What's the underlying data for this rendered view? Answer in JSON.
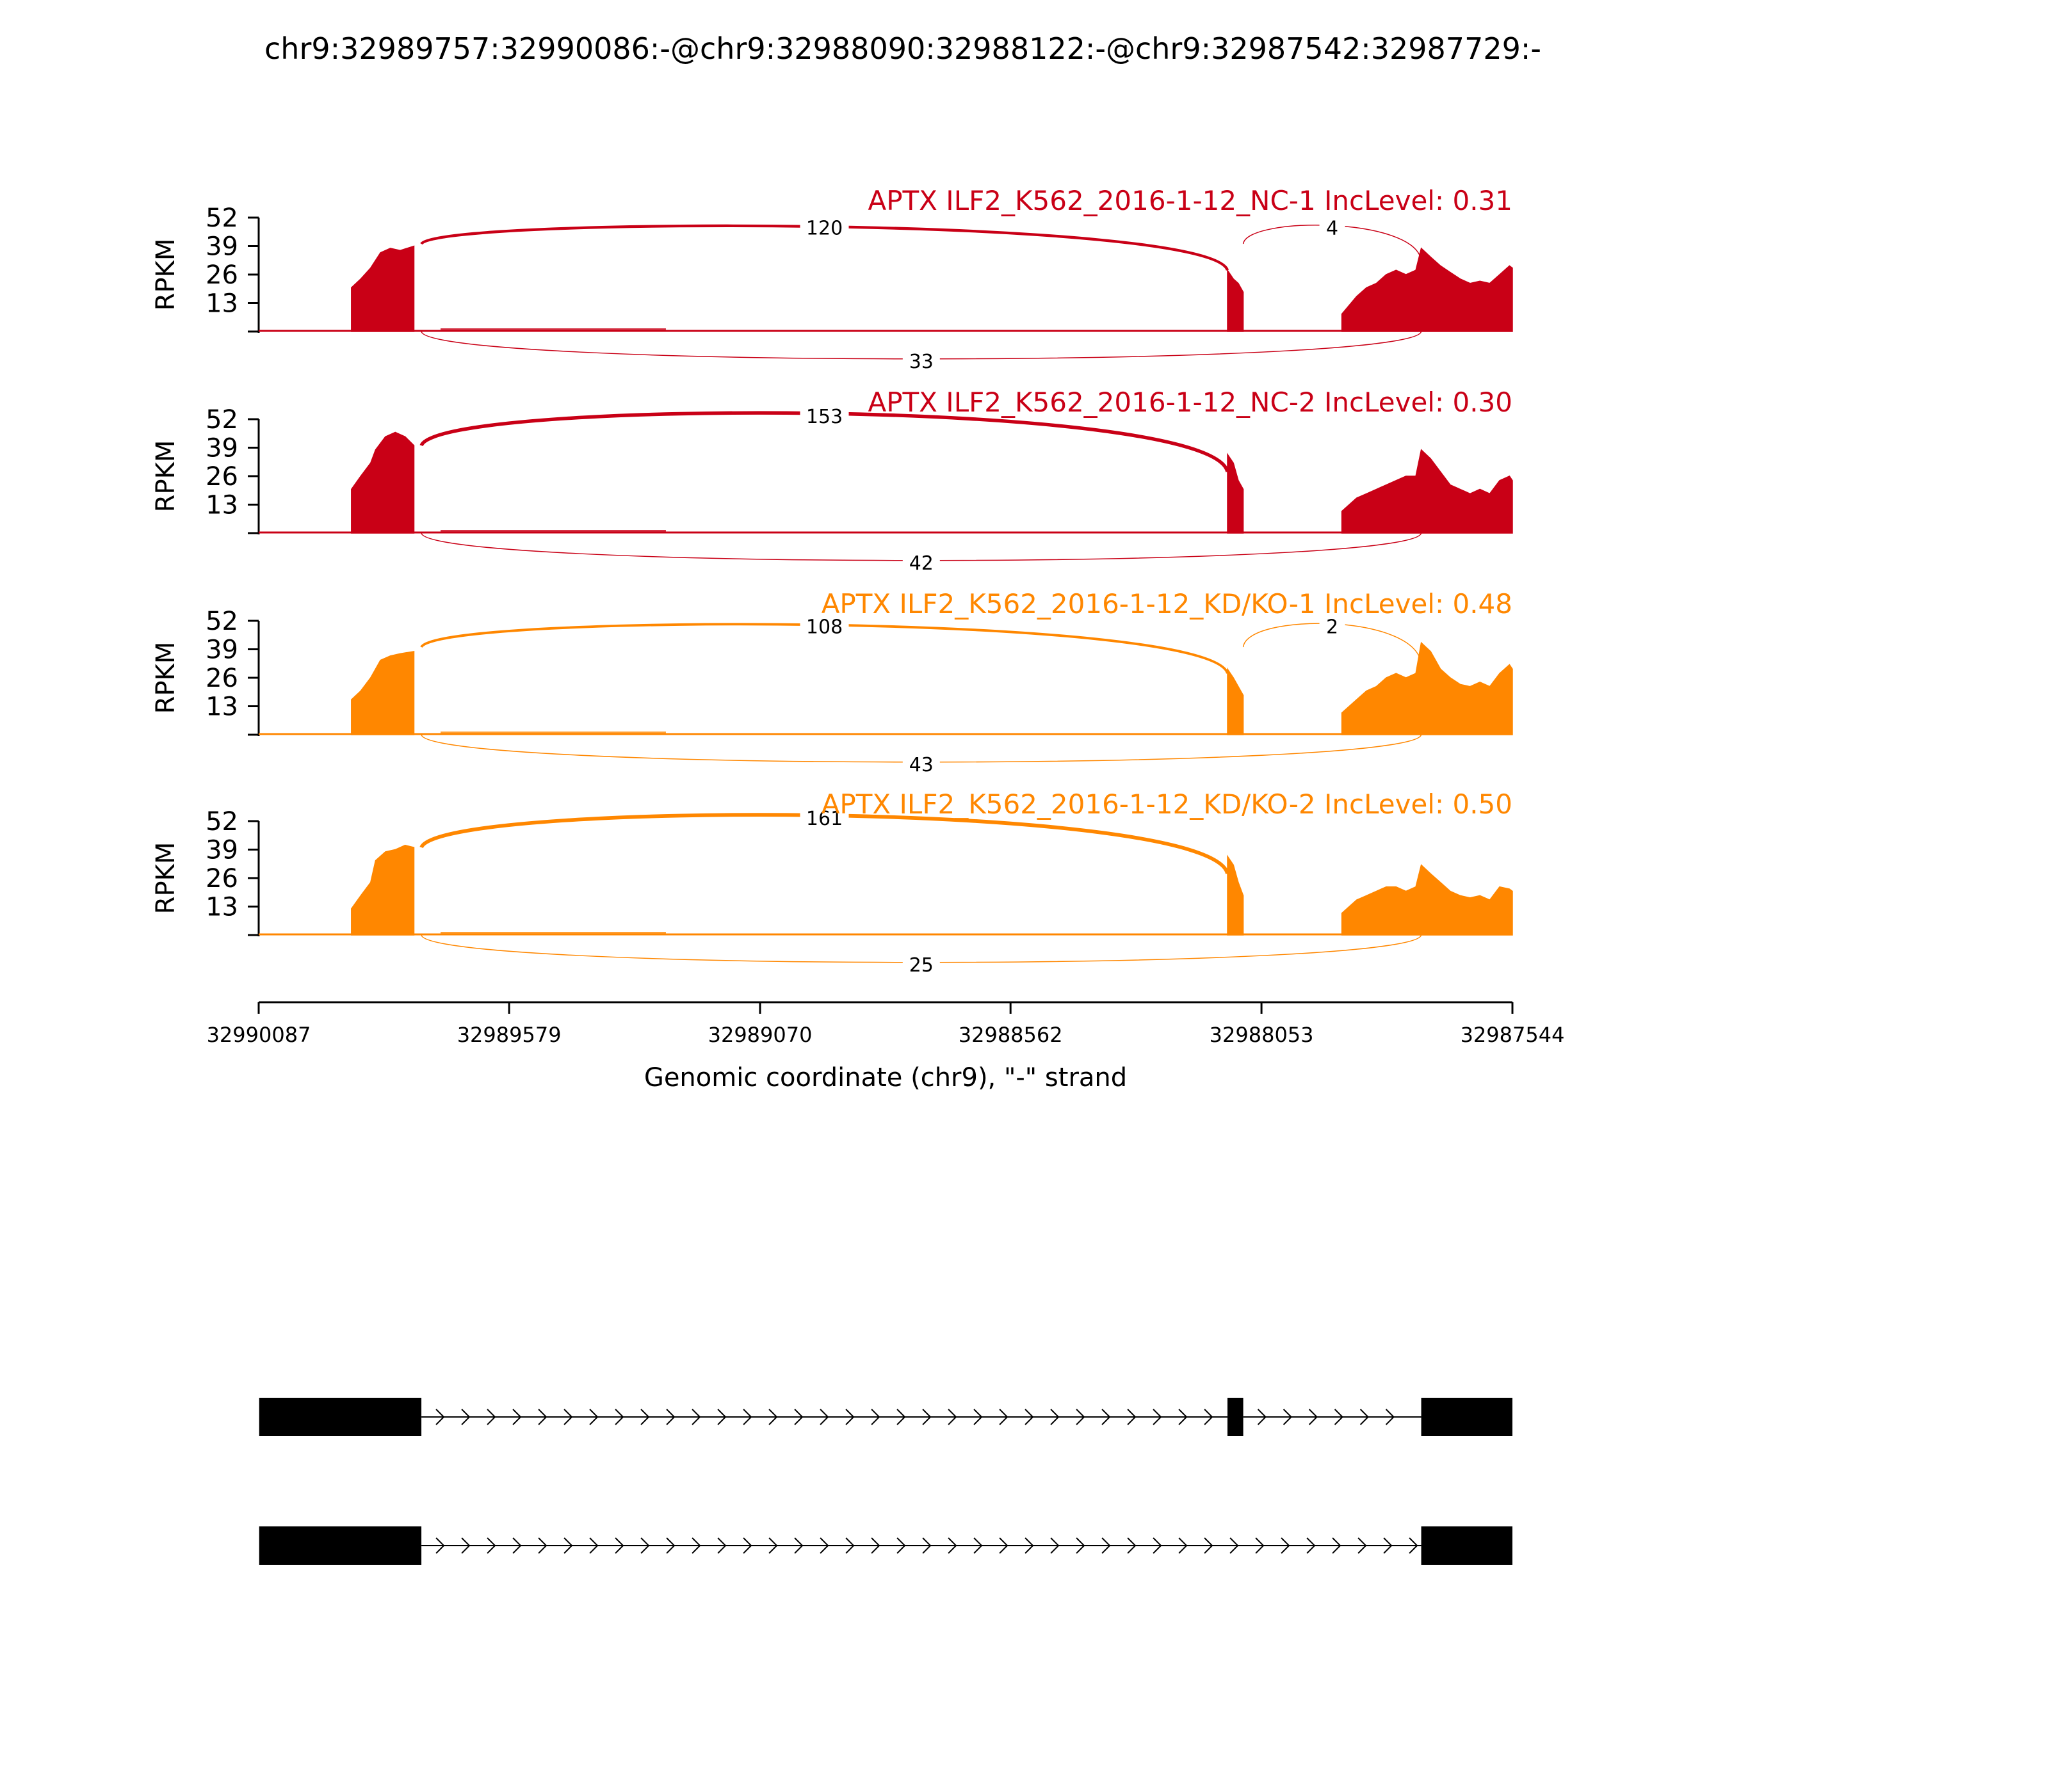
{
  "title": "chr9:32989757:32990086:-@chr9:32988090:32988122:-@chr9:32987542:32987729:-",
  "chart_data": {
    "type": "area",
    "ylabel": "RPKM",
    "xlabel": "Genomic coordinate (chr9), \"-\" strand",
    "ylim": [
      0,
      52
    ],
    "yticks": [
      "52",
      "39",
      "26",
      "13"
    ],
    "xlim": [
      32990087,
      32987544
    ],
    "xticks": [
      "32990087",
      "32989579",
      "32989070",
      "32988562",
      "32988053",
      "32987544"
    ],
    "series": [
      {
        "name": "APTX ILF2_K562_2016-1-12_NC-1 IncLevel: 0.31",
        "color": "#c90016",
        "exon1": [
          [
            32989899,
            20
          ],
          [
            32989880,
            24
          ],
          [
            32989860,
            29
          ],
          [
            32989840,
            36
          ],
          [
            32989820,
            38
          ],
          [
            32989800,
            37
          ],
          [
            32989772,
            39
          ]
        ],
        "exon2": [
          [
            32988122,
            28
          ],
          [
            32988110,
            24
          ],
          [
            32988100,
            22
          ],
          [
            32988090,
            18
          ]
        ],
        "exon3": [
          [
            32987890,
            8
          ],
          [
            32987860,
            16
          ],
          [
            32987840,
            20
          ],
          [
            32987820,
            22
          ],
          [
            32987800,
            26
          ],
          [
            32987780,
            28
          ],
          [
            32987760,
            26
          ],
          [
            32987740,
            28
          ],
          [
            32987729,
            38
          ],
          [
            32987710,
            34
          ],
          [
            32987690,
            30
          ],
          [
            32987670,
            27
          ],
          [
            32987650,
            24
          ],
          [
            32987630,
            22
          ],
          [
            32987610,
            23
          ],
          [
            32987590,
            22
          ],
          [
            32987570,
            26
          ],
          [
            32987550,
            30
          ],
          [
            32987544,
            29
          ]
        ],
        "junctions": [
          {
            "count": "120",
            "from": 32989757,
            "to": 32988122,
            "side": "above",
            "height": 46
          },
          {
            "count": "4",
            "from": 32988090,
            "to": 32987729,
            "side": "above",
            "height": 46
          },
          {
            "count": "33",
            "from": 32989757,
            "to": 32987729,
            "side": "below",
            "height": 12
          }
        ]
      },
      {
        "name": "APTX ILF2_K562_2016-1-12_NC-2 IncLevel: 0.30",
        "color": "#c90016",
        "exon1": [
          [
            32989899,
            20
          ],
          [
            32989880,
            26
          ],
          [
            32989860,
            32
          ],
          [
            32989850,
            38
          ],
          [
            32989830,
            44
          ],
          [
            32989810,
            46
          ],
          [
            32989790,
            44
          ],
          [
            32989772,
            40
          ]
        ],
        "exon2": [
          [
            32988122,
            36
          ],
          [
            32988110,
            32
          ],
          [
            32988100,
            24
          ],
          [
            32988090,
            20
          ]
        ],
        "exon3": [
          [
            32987890,
            10
          ],
          [
            32987860,
            16
          ],
          [
            32987840,
            18
          ],
          [
            32987820,
            20
          ],
          [
            32987800,
            22
          ],
          [
            32987780,
            24
          ],
          [
            32987760,
            26
          ],
          [
            32987740,
            26
          ],
          [
            32987729,
            38
          ],
          [
            32987710,
            34
          ],
          [
            32987690,
            28
          ],
          [
            32987670,
            22
          ],
          [
            32987650,
            20
          ],
          [
            32987630,
            18
          ],
          [
            32987610,
            20
          ],
          [
            32987590,
            18
          ],
          [
            32987570,
            24
          ],
          [
            32987550,
            26
          ],
          [
            32987544,
            24
          ]
        ],
        "junctions": [
          {
            "count": "153",
            "from": 32989757,
            "to": 32988122,
            "side": "above",
            "height": 52
          },
          {
            "count": "42",
            "from": 32989757,
            "to": 32987729,
            "side": "below",
            "height": 14
          }
        ]
      },
      {
        "name": "APTX ILF2_K562_2016-1-12_KD/KO-1 IncLevel: 0.48",
        "color": "#ff8700",
        "exon1": [
          [
            32989899,
            16
          ],
          [
            32989880,
            20
          ],
          [
            32989860,
            26
          ],
          [
            32989840,
            34
          ],
          [
            32989820,
            36
          ],
          [
            32989800,
            37
          ],
          [
            32989772,
            38
          ]
        ],
        "exon2": [
          [
            32988122,
            30
          ],
          [
            32988110,
            26
          ],
          [
            32988100,
            22
          ],
          [
            32988090,
            18
          ]
        ],
        "exon3": [
          [
            32987890,
            10
          ],
          [
            32987860,
            16
          ],
          [
            32987840,
            20
          ],
          [
            32987820,
            22
          ],
          [
            32987800,
            26
          ],
          [
            32987780,
            28
          ],
          [
            32987760,
            26
          ],
          [
            32987740,
            28
          ],
          [
            32987729,
            42
          ],
          [
            32987710,
            38
          ],
          [
            32987690,
            30
          ],
          [
            32987670,
            26
          ],
          [
            32987650,
            23
          ],
          [
            32987630,
            22
          ],
          [
            32987610,
            24
          ],
          [
            32987590,
            22
          ],
          [
            32987570,
            28
          ],
          [
            32987550,
            32
          ],
          [
            32987544,
            30
          ]
        ],
        "junctions": [
          {
            "count": "108",
            "from": 32989757,
            "to": 32988122,
            "side": "above",
            "height": 48
          },
          {
            "count": "2",
            "from": 32988090,
            "to": 32987729,
            "side": "above",
            "height": 48
          },
          {
            "count": "43",
            "from": 32989757,
            "to": 32987729,
            "side": "below",
            "height": 12
          }
        ]
      },
      {
        "name": "APTX ILF2_K562_2016-1-12_KD/KO-2 IncLevel: 0.50",
        "color": "#ff8700",
        "exon1": [
          [
            32989899,
            12
          ],
          [
            32989880,
            18
          ],
          [
            32989860,
            24
          ],
          [
            32989850,
            34
          ],
          [
            32989830,
            38
          ],
          [
            32989810,
            39
          ],
          [
            32989790,
            41
          ],
          [
            32989772,
            40
          ]
        ],
        "exon2": [
          [
            32988122,
            36
          ],
          [
            32988110,
            32
          ],
          [
            32988100,
            24
          ],
          [
            32988090,
            18
          ]
        ],
        "exon3": [
          [
            32987890,
            10
          ],
          [
            32987860,
            16
          ],
          [
            32987840,
            18
          ],
          [
            32987820,
            20
          ],
          [
            32987800,
            22
          ],
          [
            32987780,
            22
          ],
          [
            32987760,
            20
          ],
          [
            32987740,
            22
          ],
          [
            32987729,
            32
          ],
          [
            32987710,
            28
          ],
          [
            32987690,
            24
          ],
          [
            32987670,
            20
          ],
          [
            32987650,
            18
          ],
          [
            32987630,
            17
          ],
          [
            32987610,
            18
          ],
          [
            32987590,
            16
          ],
          [
            32987570,
            22
          ],
          [
            32987550,
            21
          ],
          [
            32987544,
            20
          ]
        ],
        "junctions": [
          {
            "count": "161",
            "from": 32989757,
            "to": 32988122,
            "side": "above",
            "height": 52
          },
          {
            "count": "25",
            "from": 32989757,
            "to": 32987729,
            "side": "below",
            "height": 12
          }
        ]
      }
    ],
    "isoforms": [
      {
        "exons": [
          [
            32990086,
            32989757
          ],
          [
            32988122,
            32988090
          ],
          [
            32987729,
            32987544
          ]
        ]
      },
      {
        "exons": [
          [
            32990086,
            32989757
          ],
          [
            32987729,
            32987544
          ]
        ]
      }
    ]
  }
}
